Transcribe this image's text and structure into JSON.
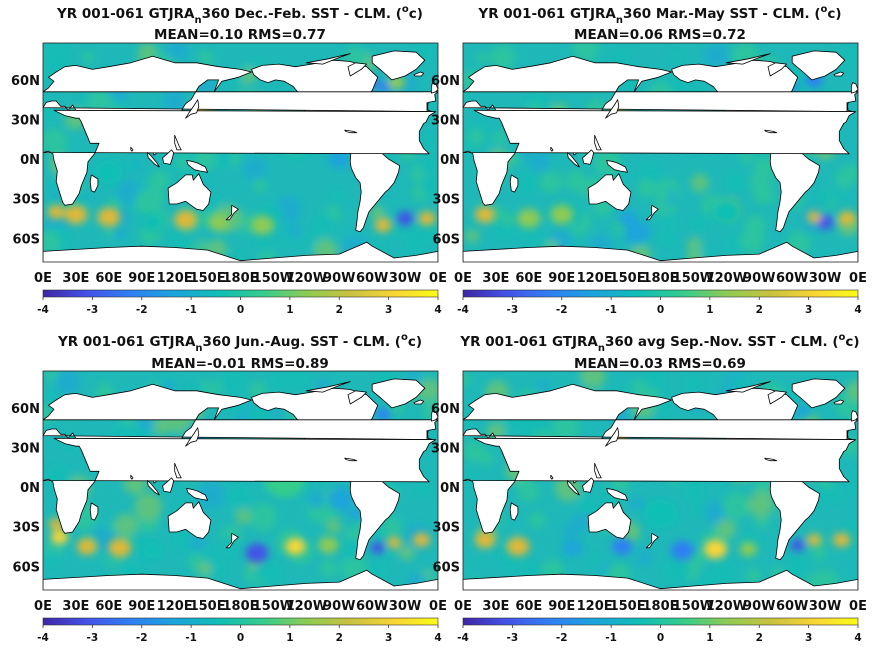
{
  "chart_data": [
    {
      "type": "heatmap",
      "title_parts": [
        "YR 001-061 GTJRA",
        "n",
        "360  Dec.-Feb. SST - CLM. (",
        "o",
        "c)"
      ],
      "subtitle": "MEAN=0.10   RMS=0.77",
      "mean": 0.1,
      "rms": 0.77,
      "x_ticks": [
        "0E",
        "30E",
        "60E",
        "90E",
        "120E",
        "150E",
        "180E",
        "150W",
        "120W",
        "90W",
        "60W",
        "30W",
        "0E"
      ],
      "y_ticks": [
        "60N",
        "30N",
        "0N",
        "30S",
        "60S"
      ],
      "colorbar": {
        "min": -4,
        "max": 4,
        "ticks": [
          "-4",
          "-3",
          "-2",
          "-1",
          "0",
          "1",
          "2",
          "3",
          "4"
        ]
      }
    },
    {
      "type": "heatmap",
      "title_parts": [
        "YR 001-061 GTJRA",
        "n",
        "360 Mar.-May SST - CLM. (",
        "o",
        "c)"
      ],
      "subtitle": "MEAN=0.06   RMS=0.72",
      "mean": 0.06,
      "rms": 0.72,
      "x_ticks": [
        "0E",
        "30E",
        "60E",
        "90E",
        "120E",
        "150E",
        "180E",
        "150W",
        "120W",
        "90W",
        "60W",
        "30W",
        "0E"
      ],
      "y_ticks": [
        "60N",
        "30N",
        "0N",
        "30S",
        "60S"
      ],
      "colorbar": {
        "min": -4,
        "max": 4,
        "ticks": [
          "-4",
          "-3",
          "-2",
          "-1",
          "0",
          "1",
          "2",
          "3",
          "4"
        ]
      }
    },
    {
      "type": "heatmap",
      "title_parts": [
        "YR 001-061 GTJRA",
        "n",
        "360 Jun.-Aug. SST - CLM. (",
        "o",
        "c)"
      ],
      "subtitle": "MEAN=-0.01   RMS=0.89",
      "mean": -0.01,
      "rms": 0.89,
      "x_ticks": [
        "0E",
        "30E",
        "60E",
        "90E",
        "120E",
        "150E",
        "180E",
        "150W",
        "120W",
        "90W",
        "60W",
        "30W",
        "0E"
      ],
      "y_ticks": [
        "60N",
        "30N",
        "0N",
        "30S",
        "60S"
      ],
      "colorbar": {
        "min": -4,
        "max": 4,
        "ticks": [
          "-4",
          "-3",
          "-2",
          "-1",
          "0",
          "1",
          "2",
          "3",
          "4"
        ]
      }
    },
    {
      "type": "heatmap",
      "title_parts": [
        "YR 001-061 GTJRA",
        "n",
        "360 avg Sep.-Nov. SST - CLM. (",
        "o",
        "c)"
      ],
      "subtitle": "MEAN=0.03   RMS=0.69",
      "mean": 0.03,
      "rms": 0.69,
      "x_ticks": [
        "0E",
        "30E",
        "60E",
        "90E",
        "120E",
        "150E",
        "180E",
        "150W",
        "120W",
        "90W",
        "60W",
        "30W",
        "0E"
      ],
      "y_ticks": [
        "60N",
        "30N",
        "0N",
        "30S",
        "60S"
      ],
      "colorbar": {
        "min": -4,
        "max": 4,
        "ticks": [
          "-4",
          "-3",
          "-2",
          "-1",
          "0",
          "1",
          "2",
          "3",
          "4"
        ]
      }
    }
  ],
  "colors": {
    "colormap": [
      "#3e26a8",
      "#4352e8",
      "#2f7ff5",
      "#1aa4dc",
      "#0fbfb4",
      "#36cd8b",
      "#8fcb53",
      "#e0b837",
      "#f9d534",
      "#f9fb15"
    ],
    "land": "#ffffff",
    "coast": "#000000",
    "ocean_base": "#1fb8b8"
  }
}
